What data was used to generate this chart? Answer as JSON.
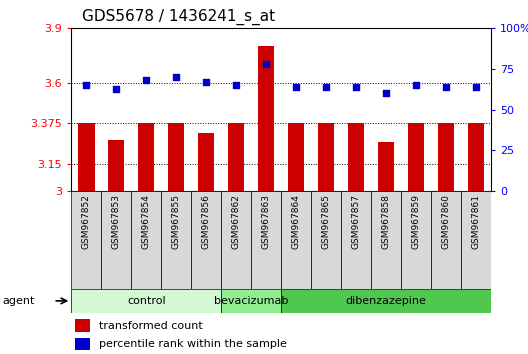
{
  "title": "GDS5678 / 1436241_s_at",
  "samples": [
    "GSM967852",
    "GSM967853",
    "GSM967854",
    "GSM967855",
    "GSM967856",
    "GSM967862",
    "GSM967863",
    "GSM967864",
    "GSM967865",
    "GSM967857",
    "GSM967858",
    "GSM967859",
    "GSM967860",
    "GSM967861"
  ],
  "transformed_count": [
    3.375,
    3.28,
    3.375,
    3.375,
    3.32,
    3.375,
    3.8,
    3.375,
    3.375,
    3.375,
    3.27,
    3.375,
    3.375,
    3.375
  ],
  "percentile_rank": [
    65,
    63,
    68,
    70,
    67,
    65,
    78,
    64,
    64,
    64,
    60,
    65,
    64,
    64
  ],
  "groups": [
    {
      "label": "control",
      "start": 0,
      "end": 5,
      "color": "#d4f7d4"
    },
    {
      "label": "bevacizumab",
      "start": 5,
      "end": 7,
      "color": "#90ee90"
    },
    {
      "label": "dibenzazepine",
      "start": 7,
      "end": 14,
      "color": "#50c850"
    }
  ],
  "ylim_left": [
    3.0,
    3.9
  ],
  "ylim_right": [
    0,
    100
  ],
  "yticks_left": [
    3.0,
    3.15,
    3.375,
    3.6,
    3.9
  ],
  "ytick_labels_left": [
    "3",
    "3.15",
    "3.375",
    "3.6",
    "3.9"
  ],
  "yticks_right": [
    0,
    25,
    50,
    75,
    100
  ],
  "ytick_labels_right": [
    "0",
    "25",
    "50",
    "75",
    "100%"
  ],
  "bar_color": "#cc0000",
  "dot_color": "#0000cc",
  "bar_width": 0.55,
  "background_color": "#ffffff",
  "plot_bg_color": "#ffffff",
  "cell_bg_color": "#d8d8d8",
  "agent_label": "agent",
  "legend_bar_label": "transformed count",
  "legend_dot_label": "percentile rank within the sample",
  "title_fontsize": 11,
  "tick_fontsize": 8,
  "sample_fontsize": 6.5
}
